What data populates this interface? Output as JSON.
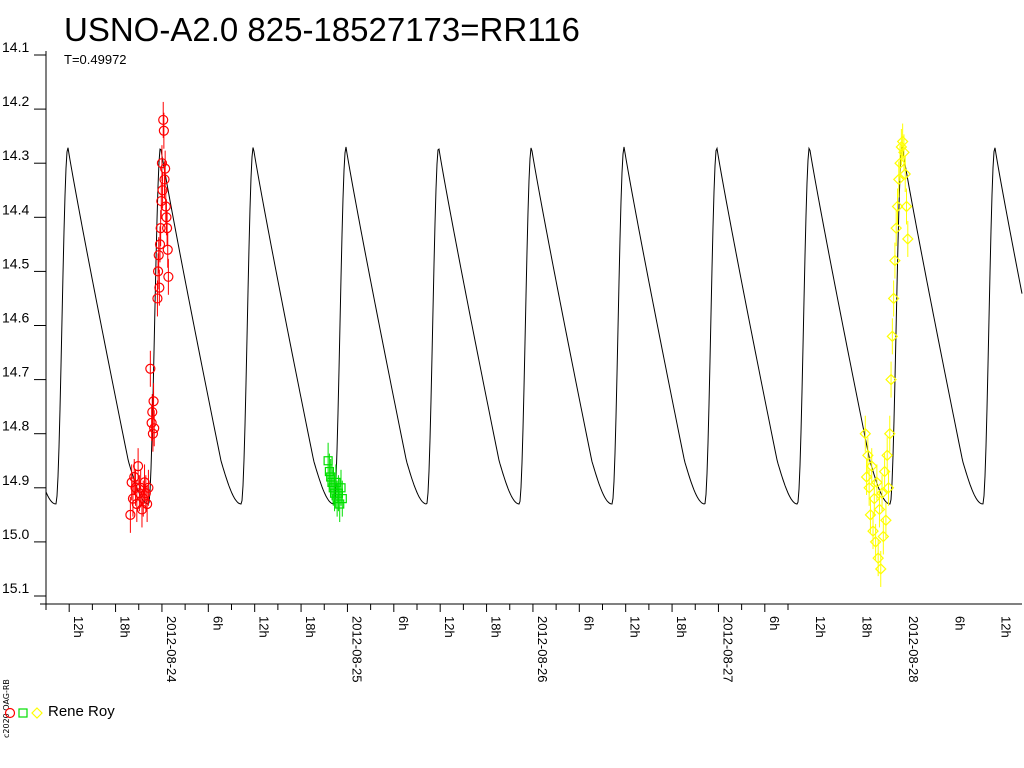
{
  "chart_data": {
    "type": "scatter",
    "title": "USNO-A2.0 825-18527173=RR116",
    "period_label": "T=0.49972",
    "y_axis": {
      "inverted": true,
      "ylim": [
        14.1,
        15.1
      ],
      "tick_labels": [
        "14.1",
        "14.2",
        "14.3",
        "14.4",
        "14.5",
        "14.6",
        "14.7",
        "14.8",
        "14.9",
        "15.0",
        "15.1"
      ]
    },
    "x_axis": {
      "tick_labels": [
        "12h",
        "18h",
        "2012-08-24",
        "6h",
        "12h",
        "18h",
        "2012-08-25",
        "6h",
        "12h",
        "18h",
        "2012-08-26",
        "6h",
        "12h",
        "18h",
        "2012-08-27",
        "6h",
        "12h",
        "18h",
        "2012-08-28",
        "6h",
        "12h"
      ]
    },
    "model_curve": {
      "period_days": 0.49972,
      "min_mag": 14.93,
      "max_mag": 14.27,
      "color": "#000000"
    },
    "series": [
      {
        "name": "Rene Roy",
        "marker": "circle",
        "color": "#ff0000",
        "points": [
          [
            "2012-08-23 19:55",
            14.95
          ],
          [
            "2012-08-23 20:05",
            14.89
          ],
          [
            "2012-08-23 20:15",
            14.92
          ],
          [
            "2012-08-23 20:25",
            14.88
          ],
          [
            "2012-08-23 20:35",
            14.9
          ],
          [
            "2012-08-23 20:45",
            14.93
          ],
          [
            "2012-08-23 20:55",
            14.86
          ],
          [
            "2012-08-23 21:05",
            14.91
          ],
          [
            "2012-08-23 21:15",
            14.9
          ],
          [
            "2012-08-23 21:25",
            14.94
          ],
          [
            "2012-08-23 21:35",
            14.92
          ],
          [
            "2012-08-23 21:45",
            14.89
          ],
          [
            "2012-08-23 21:55",
            14.91
          ],
          [
            "2012-08-23 22:05",
            14.93
          ],
          [
            "2012-08-23 22:15",
            14.9
          ],
          [
            "2012-08-23 22:30",
            14.68
          ],
          [
            "2012-08-23 22:40",
            14.78
          ],
          [
            "2012-08-23 22:45",
            14.76
          ],
          [
            "2012-08-23 22:50",
            14.8
          ],
          [
            "2012-08-23 22:55",
            14.74
          ],
          [
            "2012-08-23 23:00",
            14.79
          ],
          [
            "2012-08-23 23:25",
            14.55
          ],
          [
            "2012-08-23 23:30",
            14.5
          ],
          [
            "2012-08-23 23:35",
            14.47
          ],
          [
            "2012-08-23 23:40",
            14.53
          ],
          [
            "2012-08-23 23:45",
            14.45
          ],
          [
            "2012-08-23 23:50",
            14.42
          ],
          [
            "2012-08-23 23:55",
            14.37
          ],
          [
            "2012-08-24 00:00",
            14.3
          ],
          [
            "2012-08-24 00:05",
            14.35
          ],
          [
            "2012-08-24 00:10",
            14.22
          ],
          [
            "2012-08-24 00:15",
            14.24
          ],
          [
            "2012-08-24 00:20",
            14.33
          ],
          [
            "2012-08-24 00:25",
            14.31
          ],
          [
            "2012-08-24 00:30",
            14.38
          ],
          [
            "2012-08-24 00:35",
            14.4
          ],
          [
            "2012-08-24 00:40",
            14.42
          ],
          [
            "2012-08-24 00:45",
            14.46
          ],
          [
            "2012-08-24 00:50",
            14.51
          ]
        ]
      },
      {
        "name": "Rene Roy",
        "marker": "square",
        "color": "#00e000",
        "points": [
          [
            "2012-08-24 21:30",
            14.85
          ],
          [
            "2012-08-24 21:40",
            14.87
          ],
          [
            "2012-08-24 21:50",
            14.88
          ],
          [
            "2012-08-24 22:00",
            14.89
          ],
          [
            "2012-08-24 22:10",
            14.9
          ],
          [
            "2012-08-24 22:20",
            14.91
          ],
          [
            "2012-08-24 22:30",
            14.89
          ],
          [
            "2012-08-24 22:40",
            14.92
          ],
          [
            "2012-08-24 22:50",
            14.91
          ],
          [
            "2012-08-24 23:00",
            14.93
          ],
          [
            "2012-08-24 23:10",
            14.9
          ],
          [
            "2012-08-24 23:20",
            14.92
          ]
        ]
      },
      {
        "name": "Rene Roy",
        "marker": "diamond",
        "color": "#ffff00",
        "points": [
          [
            "2012-08-27 19:00",
            14.8
          ],
          [
            "2012-08-27 19:10",
            14.88
          ],
          [
            "2012-08-27 19:20",
            14.84
          ],
          [
            "2012-08-27 19:30",
            14.9
          ],
          [
            "2012-08-27 19:40",
            14.95
          ],
          [
            "2012-08-27 19:50",
            14.86
          ],
          [
            "2012-08-27 20:00",
            14.98
          ],
          [
            "2012-08-27 20:10",
            14.92
          ],
          [
            "2012-08-27 20:20",
            15.0
          ],
          [
            "2012-08-27 20:30",
            14.89
          ],
          [
            "2012-08-27 20:40",
            15.03
          ],
          [
            "2012-08-27 20:50",
            14.94
          ],
          [
            "2012-08-27 21:00",
            15.05
          ],
          [
            "2012-08-27 21:10",
            14.91
          ],
          [
            "2012-08-27 21:20",
            14.99
          ],
          [
            "2012-08-27 21:30",
            14.87
          ],
          [
            "2012-08-27 21:40",
            14.96
          ],
          [
            "2012-08-27 21:50",
            14.84
          ],
          [
            "2012-08-27 22:00",
            14.9
          ],
          [
            "2012-08-27 22:10",
            14.8
          ],
          [
            "2012-08-27 22:20",
            14.7
          ],
          [
            "2012-08-27 22:30",
            14.62
          ],
          [
            "2012-08-27 22:40",
            14.55
          ],
          [
            "2012-08-27 22:50",
            14.48
          ],
          [
            "2012-08-27 23:00",
            14.42
          ],
          [
            "2012-08-27 23:10",
            14.38
          ],
          [
            "2012-08-27 23:20",
            14.33
          ],
          [
            "2012-08-27 23:30",
            14.3
          ],
          [
            "2012-08-27 23:40",
            14.27
          ],
          [
            "2012-08-27 23:50",
            14.26
          ],
          [
            "2012-08-28 00:00",
            14.28
          ],
          [
            "2012-08-28 00:10",
            14.32
          ],
          [
            "2012-08-28 00:20",
            14.38
          ],
          [
            "2012-08-28 00:30",
            14.44
          ]
        ]
      }
    ],
    "legend": {
      "label": "Rene Roy",
      "placement": "bottom-left"
    },
    "grid": false
  },
  "copyright": "c2020 OAG-RB"
}
